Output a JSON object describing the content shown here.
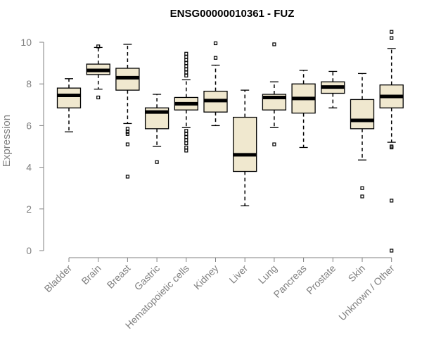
{
  "chart_data": {
    "type": "boxplot",
    "title": "ENSG00000010361 - FUZ",
    "xlabel": "",
    "ylabel": "Expression",
    "ylim": [
      0,
      10
    ],
    "yticks": [
      0,
      2,
      4,
      6,
      8,
      10
    ],
    "box_color": "#f0e8cf",
    "categories": [
      "Bladder",
      "Brain",
      "Breast",
      "Gastric",
      "Hematopoietic cells",
      "Kidney",
      "Liver",
      "Lung",
      "Pancreas",
      "Prostate",
      "Skin",
      "Unknown / Other"
    ],
    "boxes": [
      {
        "whislo": 5.7,
        "q1": 6.85,
        "med": 7.45,
        "q3": 7.8,
        "whishi": 8.25,
        "fliers": []
      },
      {
        "whislo": 7.75,
        "q1": 8.45,
        "med": 8.65,
        "q3": 8.95,
        "whishi": 9.75,
        "fliers": [
          7.35,
          9.8
        ]
      },
      {
        "whislo": 6.1,
        "q1": 7.7,
        "med": 8.3,
        "q3": 8.75,
        "whishi": 9.9,
        "fliers": [
          5.85,
          5.7,
          5.6,
          5.1,
          3.55
        ]
      },
      {
        "whislo": 5.0,
        "q1": 5.85,
        "med": 6.65,
        "q3": 6.85,
        "whishi": 7.5,
        "fliers": [
          4.25
        ]
      },
      {
        "whislo": 5.9,
        "q1": 6.75,
        "med": 7.05,
        "q3": 7.35,
        "whishi": 8.2,
        "fliers": [
          8.4,
          8.55,
          8.7,
          8.85,
          9.0,
          9.15,
          9.3,
          9.45,
          5.75,
          5.6,
          5.45,
          5.3,
          5.15,
          4.95,
          4.8
        ]
      },
      {
        "whislo": 6.0,
        "q1": 6.65,
        "med": 7.2,
        "q3": 7.65,
        "whishi": 8.9,
        "fliers": [
          9.25,
          9.95
        ]
      },
      {
        "whislo": 2.15,
        "q1": 3.8,
        "med": 4.6,
        "q3": 6.4,
        "whishi": 7.7,
        "fliers": []
      },
      {
        "whislo": 5.9,
        "q1": 6.75,
        "med": 7.35,
        "q3": 7.5,
        "whishi": 8.1,
        "fliers": [
          5.1,
          9.9
        ]
      },
      {
        "whislo": 4.95,
        "q1": 6.6,
        "med": 7.3,
        "q3": 8.0,
        "whishi": 8.65,
        "fliers": []
      },
      {
        "whislo": 6.85,
        "q1": 7.55,
        "med": 7.85,
        "q3": 8.1,
        "whishi": 8.6,
        "fliers": []
      },
      {
        "whislo": 4.35,
        "q1": 5.85,
        "med": 6.25,
        "q3": 7.25,
        "whishi": 8.5,
        "fliers": [
          3.0,
          2.6
        ]
      },
      {
        "whislo": 5.2,
        "q1": 6.85,
        "med": 7.4,
        "q3": 7.95,
        "whishi": 9.7,
        "fliers": [
          4.95,
          5.0,
          2.4,
          0.0,
          10.2,
          10.5
        ]
      }
    ]
  }
}
